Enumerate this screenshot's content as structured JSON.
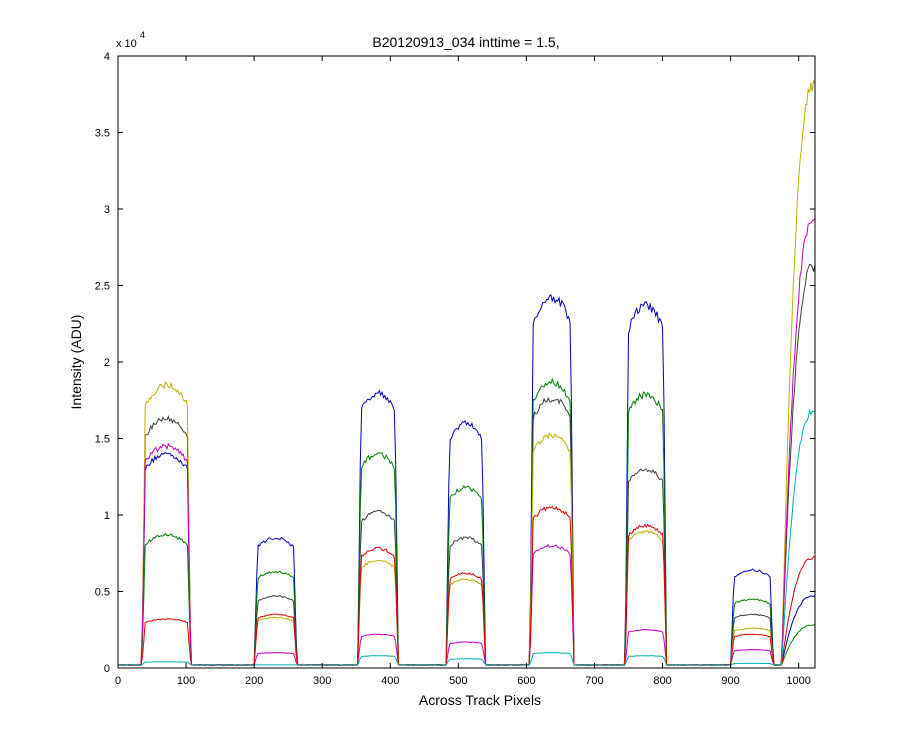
{
  "chart_data": {
    "type": "line",
    "title": "B20120913_034 inttime = 1.5,",
    "xlabel": "Across Track Pixels",
    "ylabel": "Intensity (ADU)",
    "y_multiplier_base": "x 10",
    "y_multiplier_exp": "4",
    "xlim": [
      0,
      1024
    ],
    "ylim": [
      0,
      4
    ],
    "x_ticks": [
      0,
      100,
      200,
      300,
      400,
      500,
      600,
      700,
      800,
      900,
      1000
    ],
    "y_ticks": [
      0,
      0.5,
      1,
      1.5,
      2,
      2.5,
      3,
      3.5,
      4
    ],
    "y_tick_labels": [
      "0",
      "0.5",
      "1",
      "1.5",
      "2",
      "2.5",
      "3",
      "3.5",
      "4"
    ],
    "grid": false,
    "blocks": [
      {
        "start": 35,
        "end": 107
      },
      {
        "start": 200,
        "end": 263
      },
      {
        "start": 352,
        "end": 412
      },
      {
        "start": 482,
        "end": 540
      },
      {
        "start": 605,
        "end": 670
      },
      {
        "start": 745,
        "end": 806
      },
      {
        "start": 900,
        "end": 963
      }
    ],
    "last_block_start": 975,
    "series": [
      {
        "color": "#0000c0",
        "peaks": [
          1.4,
          0.85,
          1.8,
          1.6,
          2.42,
          2.37,
          0.64,
          0.47
        ]
      },
      {
        "color": "#008000",
        "peaks": [
          0.87,
          0.63,
          1.4,
          1.18,
          1.87,
          1.79,
          0.45,
          0.28
        ]
      },
      {
        "color": "#404040",
        "peaks": [
          1.63,
          0.47,
          1.02,
          0.85,
          1.76,
          1.3,
          0.35,
          2.62
        ]
      },
      {
        "color": "#c0b000",
        "peaks": [
          1.85,
          0.33,
          0.7,
          0.58,
          1.52,
          0.89,
          0.26,
          3.8
        ]
      },
      {
        "color": "#c000c0",
        "peaks": [
          1.45,
          0.1,
          0.22,
          0.17,
          0.8,
          0.25,
          0.12,
          2.92
        ]
      },
      {
        "color": "#e00000",
        "peaks": [
          0.32,
          0.35,
          0.78,
          0.62,
          1.05,
          0.93,
          0.22,
          0.72
        ]
      },
      {
        "color": "#00b0b0",
        "peaks": [
          0.04,
          0.02,
          0.08,
          0.06,
          0.1,
          0.08,
          0.03,
          1.67
        ]
      }
    ]
  }
}
